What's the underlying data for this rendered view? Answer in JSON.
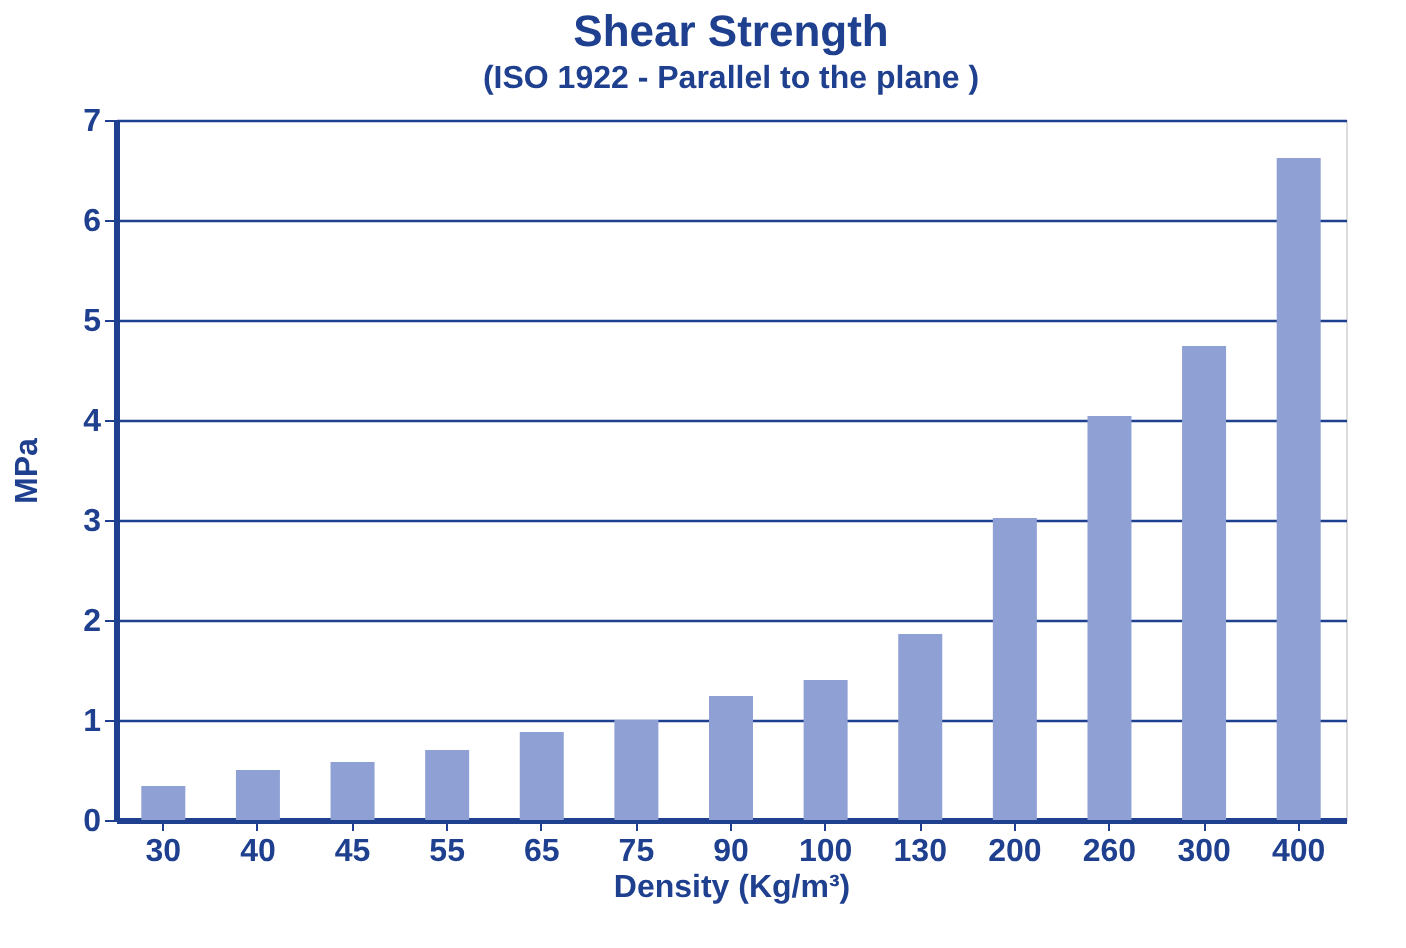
{
  "chart_data": {
    "type": "bar",
    "title": "Shear Strength",
    "subtitle": "(ISO 1922 - Parallel to the plane )",
    "xlabel": "Density (Kg/m³)",
    "ylabel": "MPa",
    "categories": [
      "30",
      "40",
      "45",
      "55",
      "65",
      "75",
      "90",
      "100",
      "130",
      "200",
      "260",
      "300",
      "400"
    ],
    "values": [
      0.34,
      0.5,
      0.58,
      0.7,
      0.88,
      1.0,
      1.24,
      1.4,
      1.86,
      3.02,
      4.04,
      4.74,
      6.62
    ],
    "color": "#8fa1d4",
    "ylim": [
      0,
      7
    ],
    "yticks": [
      0,
      1,
      2,
      3,
      4,
      5,
      6,
      7
    ],
    "grid": "y"
  }
}
